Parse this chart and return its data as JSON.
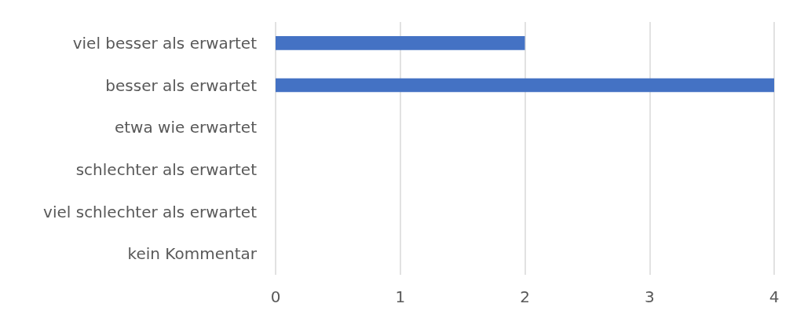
{
  "chart_data": {
    "type": "bar",
    "orientation": "horizontal",
    "categories": [
      "viel besser als erwartet",
      "besser als erwartet",
      "etwa wie erwartet",
      "schlechter als erwartet",
      "viel schlechter als erwartet",
      "kein Kommentar"
    ],
    "values": [
      2,
      4,
      0,
      0,
      0,
      0
    ],
    "color": "#4472c4",
    "xlim": [
      0,
      4
    ],
    "xticks": [
      0,
      1,
      2,
      3,
      4
    ],
    "grid": "x"
  }
}
